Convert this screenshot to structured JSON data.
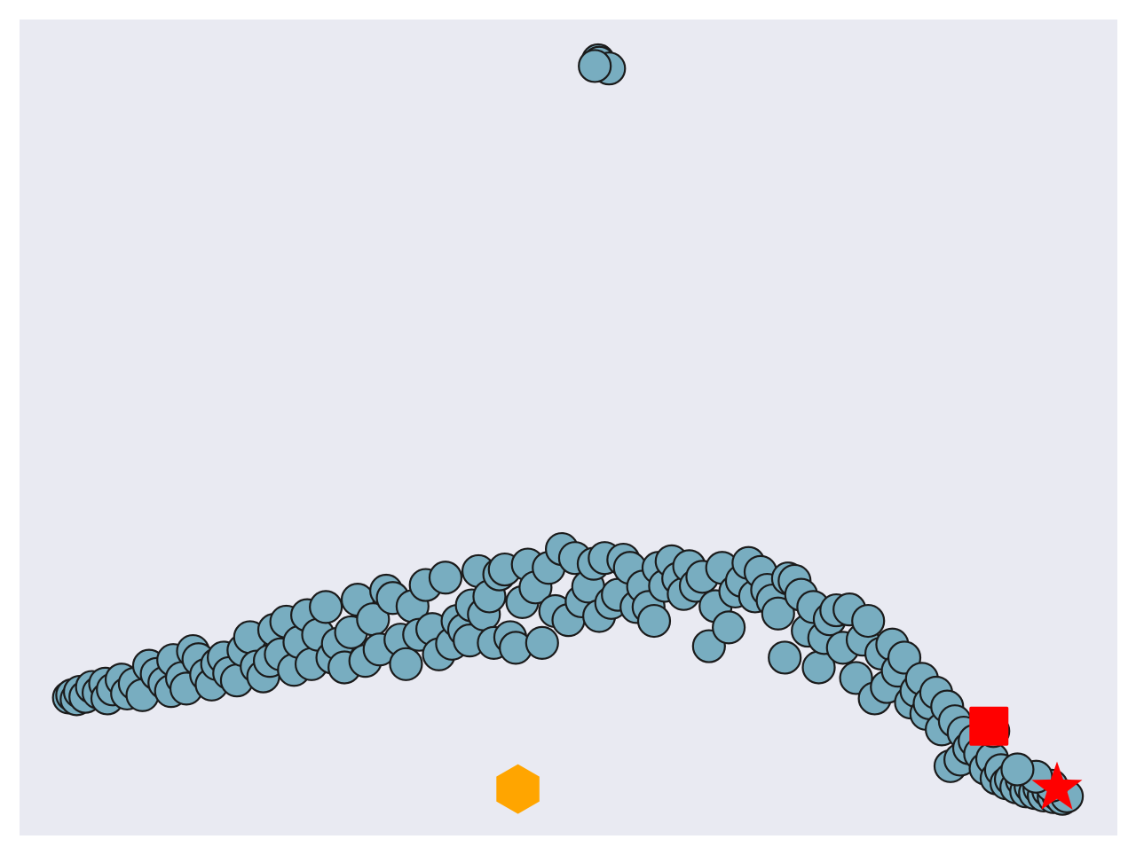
{
  "chart_data": {
    "type": "scatter",
    "title": "",
    "xlabel": "",
    "ylabel": "",
    "axes_visible": false,
    "grid": false,
    "xlim": [
      0,
      1
    ],
    "ylim": [
      0,
      1
    ],
    "colors": {
      "background": "#e9eaf2",
      "points": "#78adc0",
      "point_edge": "#1b1b1b",
      "square_marker": "#ff0000",
      "star_marker": "#ff0000",
      "hexagon_marker": "#ffa500"
    },
    "series": [
      {
        "marker": "circle",
        "points": [
          [
            0.525,
            0.945
          ],
          [
            0.527,
            0.95
          ],
          [
            0.528,
            0.947
          ],
          [
            0.537,
            0.94
          ],
          [
            0.524,
            0.943
          ],
          [
            0.045,
            0.169
          ],
          [
            0.048,
            0.172
          ],
          [
            0.052,
            0.167
          ],
          [
            0.055,
            0.176
          ],
          [
            0.06,
            0.17
          ],
          [
            0.066,
            0.182
          ],
          [
            0.072,
            0.175
          ],
          [
            0.078,
            0.186
          ],
          [
            0.08,
            0.168
          ],
          [
            0.085,
            0.179
          ],
          [
            0.093,
            0.191
          ],
          [
            0.098,
            0.174
          ],
          [
            0.105,
            0.186
          ],
          [
            0.112,
            0.172
          ],
          [
            0.118,
            0.208
          ],
          [
            0.125,
            0.198
          ],
          [
            0.132,
            0.187
          ],
          [
            0.138,
            0.177
          ],
          [
            0.14,
            0.215
          ],
          [
            0.148,
            0.193
          ],
          [
            0.152,
            0.18
          ],
          [
            0.158,
            0.226
          ],
          [
            0.163,
            0.216
          ],
          [
            0.17,
            0.197
          ],
          [
            0.175,
            0.185
          ],
          [
            0.18,
            0.21
          ],
          [
            0.186,
            0.218
          ],
          [
            0.191,
            0.199
          ],
          [
            0.198,
            0.19
          ],
          [
            0.204,
            0.227
          ],
          [
            0.21,
            0.243
          ],
          [
            0.216,
            0.207
          ],
          [
            0.222,
            0.195
          ],
          [
            0.228,
            0.214
          ],
          [
            0.232,
            0.252
          ],
          [
            0.238,
            0.222
          ],
          [
            0.243,
            0.262
          ],
          [
            0.25,
            0.203
          ],
          [
            0.255,
            0.237
          ],
          [
            0.262,
            0.27
          ],
          [
            0.266,
            0.21
          ],
          [
            0.272,
            0.246
          ],
          [
            0.279,
            0.28
          ],
          [
            0.285,
            0.218
          ],
          [
            0.29,
            0.235
          ],
          [
            0.296,
            0.206
          ],
          [
            0.302,
            0.249
          ],
          [
            0.308,
            0.289
          ],
          [
            0.315,
            0.214
          ],
          [
            0.322,
            0.265
          ],
          [
            0.328,
            0.228
          ],
          [
            0.334,
            0.3
          ],
          [
            0.34,
            0.291
          ],
          [
            0.347,
            0.24
          ],
          [
            0.352,
            0.21
          ],
          [
            0.358,
            0.281
          ],
          [
            0.364,
            0.246
          ],
          [
            0.37,
            0.307
          ],
          [
            0.376,
            0.253
          ],
          [
            0.382,
            0.222
          ],
          [
            0.388,
            0.316
          ],
          [
            0.394,
            0.235
          ],
          [
            0.399,
            0.263
          ],
          [
            0.405,
            0.252
          ],
          [
            0.41,
            0.239
          ],
          [
            0.412,
            0.282
          ],
          [
            0.418,
            0.324
          ],
          [
            0.423,
            0.271
          ],
          [
            0.428,
            0.293
          ],
          [
            0.432,
            0.236
          ],
          [
            0.437,
            0.32
          ],
          [
            0.442,
            0.326
          ],
          [
            0.447,
            0.243
          ],
          [
            0.452,
            0.23
          ],
          [
            0.458,
            0.286
          ],
          [
            0.463,
            0.332
          ],
          [
            0.47,
            0.304
          ],
          [
            0.476,
            0.236
          ],
          [
            0.482,
            0.328
          ],
          [
            0.488,
            0.275
          ],
          [
            0.494,
            0.351
          ],
          [
            0.5,
            0.264
          ],
          [
            0.506,
            0.34
          ],
          [
            0.512,
            0.287
          ],
          [
            0.518,
            0.305
          ],
          [
            0.523,
            0.333
          ],
          [
            0.528,
            0.269
          ],
          [
            0.533,
            0.34
          ],
          [
            0.539,
            0.285
          ],
          [
            0.545,
            0.295
          ],
          [
            0.55,
            0.338
          ],
          [
            0.556,
            0.328
          ],
          [
            0.562,
            0.28
          ],
          [
            0.568,
            0.305
          ],
          [
            0.573,
            0.28
          ],
          [
            0.578,
            0.263
          ],
          [
            0.582,
            0.328
          ],
          [
            0.588,
            0.306
          ],
          [
            0.594,
            0.336
          ],
          [
            0.6,
            0.315
          ],
          [
            0.605,
            0.296
          ],
          [
            0.61,
            0.33
          ],
          [
            0.616,
            0.306
          ],
          [
            0.622,
            0.317
          ],
          [
            0.628,
            0.232
          ],
          [
            0.634,
            0.281
          ],
          [
            0.64,
            0.328
          ],
          [
            0.646,
            0.255
          ],
          [
            0.652,
            0.299
          ],
          [
            0.658,
            0.312
          ],
          [
            0.664,
            0.334
          ],
          [
            0.67,
            0.293
          ],
          [
            0.675,
            0.323
          ],
          [
            0.681,
            0.301
          ],
          [
            0.686,
            0.288
          ],
          [
            0.691,
            0.272
          ],
          [
            0.697,
            0.218
          ],
          [
            0.7,
            0.315
          ],
          [
            0.706,
            0.312
          ],
          [
            0.712,
            0.295
          ],
          [
            0.718,
            0.251
          ],
          [
            0.723,
            0.28
          ],
          [
            0.728,
            0.206
          ],
          [
            0.733,
            0.242
          ],
          [
            0.738,
            0.265
          ],
          [
            0.744,
            0.276
          ],
          [
            0.75,
            0.23
          ],
          [
            0.756,
            0.277
          ],
          [
            0.762,
            0.193
          ],
          [
            0.768,
            0.24
          ],
          [
            0.773,
            0.263
          ],
          [
            0.779,
            0.168
          ],
          [
            0.785,
            0.223
          ],
          [
            0.79,
            0.182
          ],
          [
            0.795,
            0.234
          ],
          [
            0.8,
            0.202
          ],
          [
            0.806,
            0.218
          ],
          [
            0.812,
            0.163
          ],
          [
            0.817,
            0.177
          ],
          [
            0.822,
            0.192
          ],
          [
            0.826,
            0.149
          ],
          [
            0.829,
            0.162
          ],
          [
            0.835,
            0.175
          ],
          [
            0.84,
            0.13
          ],
          [
            0.845,
            0.158
          ],
          [
            0.848,
            0.085
          ],
          [
            0.852,
            0.14
          ],
          [
            0.857,
            0.093
          ],
          [
            0.86,
            0.126
          ],
          [
            0.865,
            0.107
          ],
          [
            0.87,
            0.116
          ],
          [
            0.875,
            0.1
          ],
          [
            0.88,
            0.082
          ],
          [
            0.886,
            0.094
          ],
          [
            0.89,
            0.07
          ],
          [
            0.894,
            0.08
          ],
          [
            0.899,
            0.064
          ],
          [
            0.903,
            0.069
          ],
          [
            0.908,
            0.059
          ],
          [
            0.913,
            0.068
          ],
          [
            0.917,
            0.054
          ],
          [
            0.921,
            0.06
          ],
          [
            0.925,
            0.052
          ],
          [
            0.929,
            0.058
          ],
          [
            0.933,
            0.049
          ],
          [
            0.937,
            0.055
          ],
          [
            0.942,
            0.047
          ],
          [
            0.946,
            0.05
          ],
          [
            0.95,
            0.045
          ],
          [
            0.954,
            0.048
          ],
          [
            0.94,
            0.061
          ],
          [
            0.926,
            0.072
          ],
          [
            0.909,
            0.081
          ],
          [
            0.887,
            0.128
          ]
        ]
      },
      {
        "marker": "square",
        "points": [
          [
            0.883,
            0.134
          ]
        ]
      },
      {
        "marker": "star",
        "points": [
          [
            0.945,
            0.058
          ]
        ]
      },
      {
        "marker": "hexagon",
        "points": [
          [
            0.454,
            0.057
          ]
        ]
      }
    ]
  }
}
